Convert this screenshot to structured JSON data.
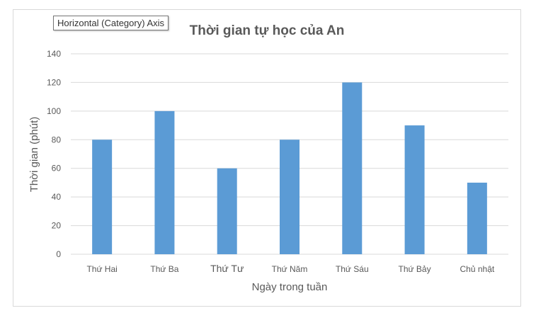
{
  "tooltip": {
    "label": "Horizontal (Category) Axis"
  },
  "colors": {
    "bar": "#5b9bd5",
    "grid": "#d9d9d9",
    "title": "#595959",
    "axis_text": "#595959"
  },
  "chart_data": {
    "type": "bar",
    "title": "Thời gian tự học của An",
    "xlabel": "Ngày trong tuần",
    "ylabel": "Thời gian (phút)",
    "categories": [
      "Thứ Hai",
      "Thứ Ba",
      "Thứ Tư",
      "Thứ Năm",
      "Thứ Sáu",
      "Thứ Bảy",
      "Chủ nhật"
    ],
    "values": [
      80,
      100,
      60,
      80,
      120,
      90,
      50
    ],
    "ylim": [
      0,
      140
    ],
    "yticks": [
      0,
      20,
      40,
      60,
      80,
      100,
      120,
      140
    ],
    "grid": true,
    "legend": "none"
  }
}
